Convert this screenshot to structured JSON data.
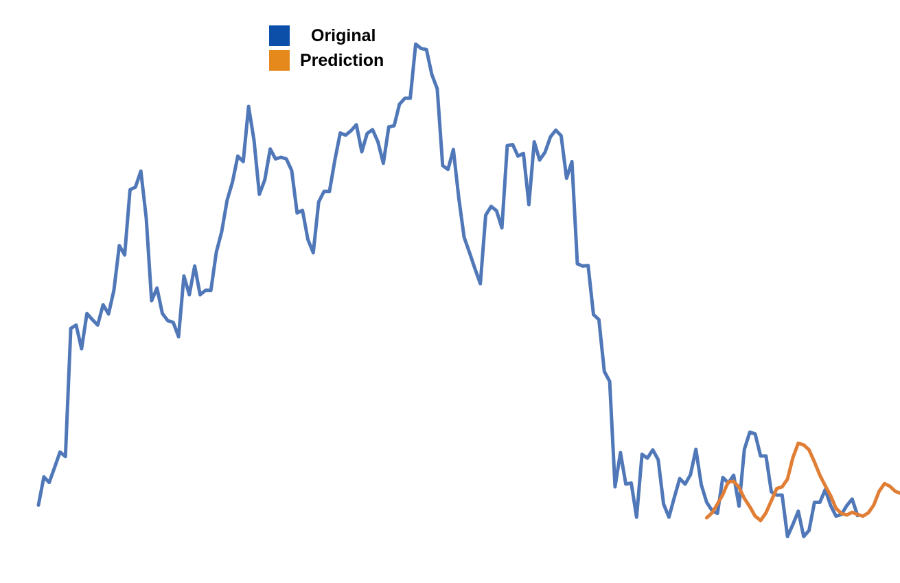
{
  "chart_data": {
    "type": "line",
    "title": "",
    "xlabel": "",
    "ylabel": "",
    "grid": false,
    "axes_visible": false,
    "legend_position": "top-left",
    "ylim": [
      0,
      100
    ],
    "series": [
      {
        "name": "Original",
        "color": "#5078b8",
        "x_start": 0,
        "values": [
          12.0,
          17.1,
          16.1,
          18.8,
          21.6,
          20.8,
          44.0,
          44.6,
          40.3,
          46.7,
          45.6,
          44.6,
          48.3,
          46.6,
          50.9,
          59.0,
          57.3,
          69.1,
          69.6,
          72.5,
          64.0,
          49.0,
          51.3,
          46.7,
          45.4,
          45.1,
          42.5,
          53.5,
          50.1,
          55.3,
          50.1,
          50.9,
          50.9,
          57.8,
          61.5,
          67.2,
          70.5,
          75.2,
          74.2,
          84.2,
          78.1,
          68.3,
          70.9,
          76.5,
          74.7,
          75.0,
          74.7,
          72.6,
          64.9,
          65.4,
          60.1,
          57.7,
          66.9,
          68.8,
          68.8,
          74.5,
          79.4,
          79.0,
          79.8,
          80.9,
          76.0,
          79.3,
          80.0,
          77.8,
          73.9,
          80.5,
          80.7,
          84.6,
          85.7,
          85.7,
          95.5,
          94.7,
          94.5,
          90.0,
          87.4,
          73.5,
          72.8,
          76.4,
          67.6,
          60.5,
          57.7,
          54.8,
          52.1,
          64.5,
          66.1,
          65.3,
          62.2,
          77.1,
          77.3,
          75.2,
          75.7,
          66.4,
          77.8,
          74.5,
          75.9,
          78.7,
          79.9,
          78.9,
          71.2,
          74.2,
          55.7,
          55.3,
          55.4,
          46.5,
          45.6,
          36.2,
          34.4,
          15.3,
          21.5,
          15.8,
          16.0,
          9.8,
          21.2,
          20.5,
          22.0,
          20.2,
          12.2,
          9.8,
          13.4,
          16.8,
          15.8,
          17.5,
          22.1,
          15.7,
          12.5,
          11.0,
          10.5,
          17.0,
          16.0,
          17.4,
          11.8,
          22.1,
          25.2,
          24.9,
          20.9,
          20.9,
          14.4,
          13.8,
          13.8,
          6.3,
          8.5,
          10.9,
          6.3,
          7.4,
          12.5,
          12.5,
          14.8,
          11.9,
          10.0,
          10.3,
          11.9,
          13.1,
          10.1
        ]
      },
      {
        "name": "Prediction",
        "color": "#e07e35",
        "x_start": 124,
        "values": [
          9.7,
          10.6,
          12.2,
          13.9,
          16.2,
          16.3,
          15.2,
          13.2,
          11.7,
          10.0,
          9.2,
          10.6,
          12.8,
          15.0,
          15.3,
          16.7,
          20.6,
          23.2,
          22.9,
          22.0,
          19.8,
          17.4,
          15.5,
          13.7,
          11.4,
          10.5,
          10.2,
          10.7,
          10.3,
          10.0,
          10.6,
          12.0,
          14.5,
          15.9,
          15.4,
          14.5,
          14.1,
          14.8
        ]
      }
    ]
  },
  "legend": {
    "items": [
      {
        "label": "Original",
        "color": "#0b4fa8"
      },
      {
        "label": "Prediction",
        "color": "#e5891c"
      }
    ]
  }
}
